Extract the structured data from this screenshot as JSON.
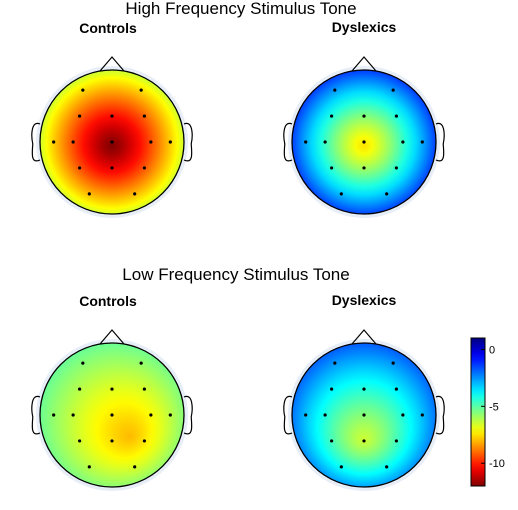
{
  "sections": [
    {
      "title": "High Frequency Stimulus Tone",
      "panels": [
        {
          "label": "Controls",
          "max_value": -12,
          "focus": [
            0,
            0.05
          ],
          "spread": 0.85,
          "edge_value": -4.5
        },
        {
          "label": "Dyslexics",
          "max_value": -7.5,
          "focus": [
            0,
            0.05
          ],
          "spread": 0.55,
          "edge_value": 0
        }
      ]
    },
    {
      "title": "Low Frequency Stimulus Tone",
      "panels": [
        {
          "label": "Controls",
          "max_value": -8,
          "focus": [
            0.25,
            0.3
          ],
          "spread": 0.8,
          "edge_value": -4.5
        },
        {
          "label": "Dyslexics",
          "max_value": -6.5,
          "focus": [
            0,
            0.35
          ],
          "spread": 0.85,
          "edge_value": -0.5
        }
      ]
    }
  ],
  "colorbar": {
    "ticks": [
      {
        "value": 0,
        "label": "0"
      },
      {
        "value": -5,
        "label": "-5"
      },
      {
        "value": -10,
        "label": "-10"
      }
    ],
    "range": [
      -12,
      1
    ]
  },
  "electrodes": [
    [
      -0.45,
      -0.8
    ],
    [
      0.45,
      -0.8
    ],
    [
      -0.5,
      -0.4
    ],
    [
      0,
      -0.4
    ],
    [
      0.5,
      -0.4
    ],
    [
      -0.9,
      0
    ],
    [
      -0.6,
      0
    ],
    [
      0,
      0
    ],
    [
      0.6,
      0
    ],
    [
      0.9,
      0
    ],
    [
      -0.5,
      0.4
    ],
    [
      0,
      0.4
    ],
    [
      0.5,
      0.4
    ],
    [
      -0.35,
      0.8
    ],
    [
      0.35,
      0.8
    ]
  ]
}
